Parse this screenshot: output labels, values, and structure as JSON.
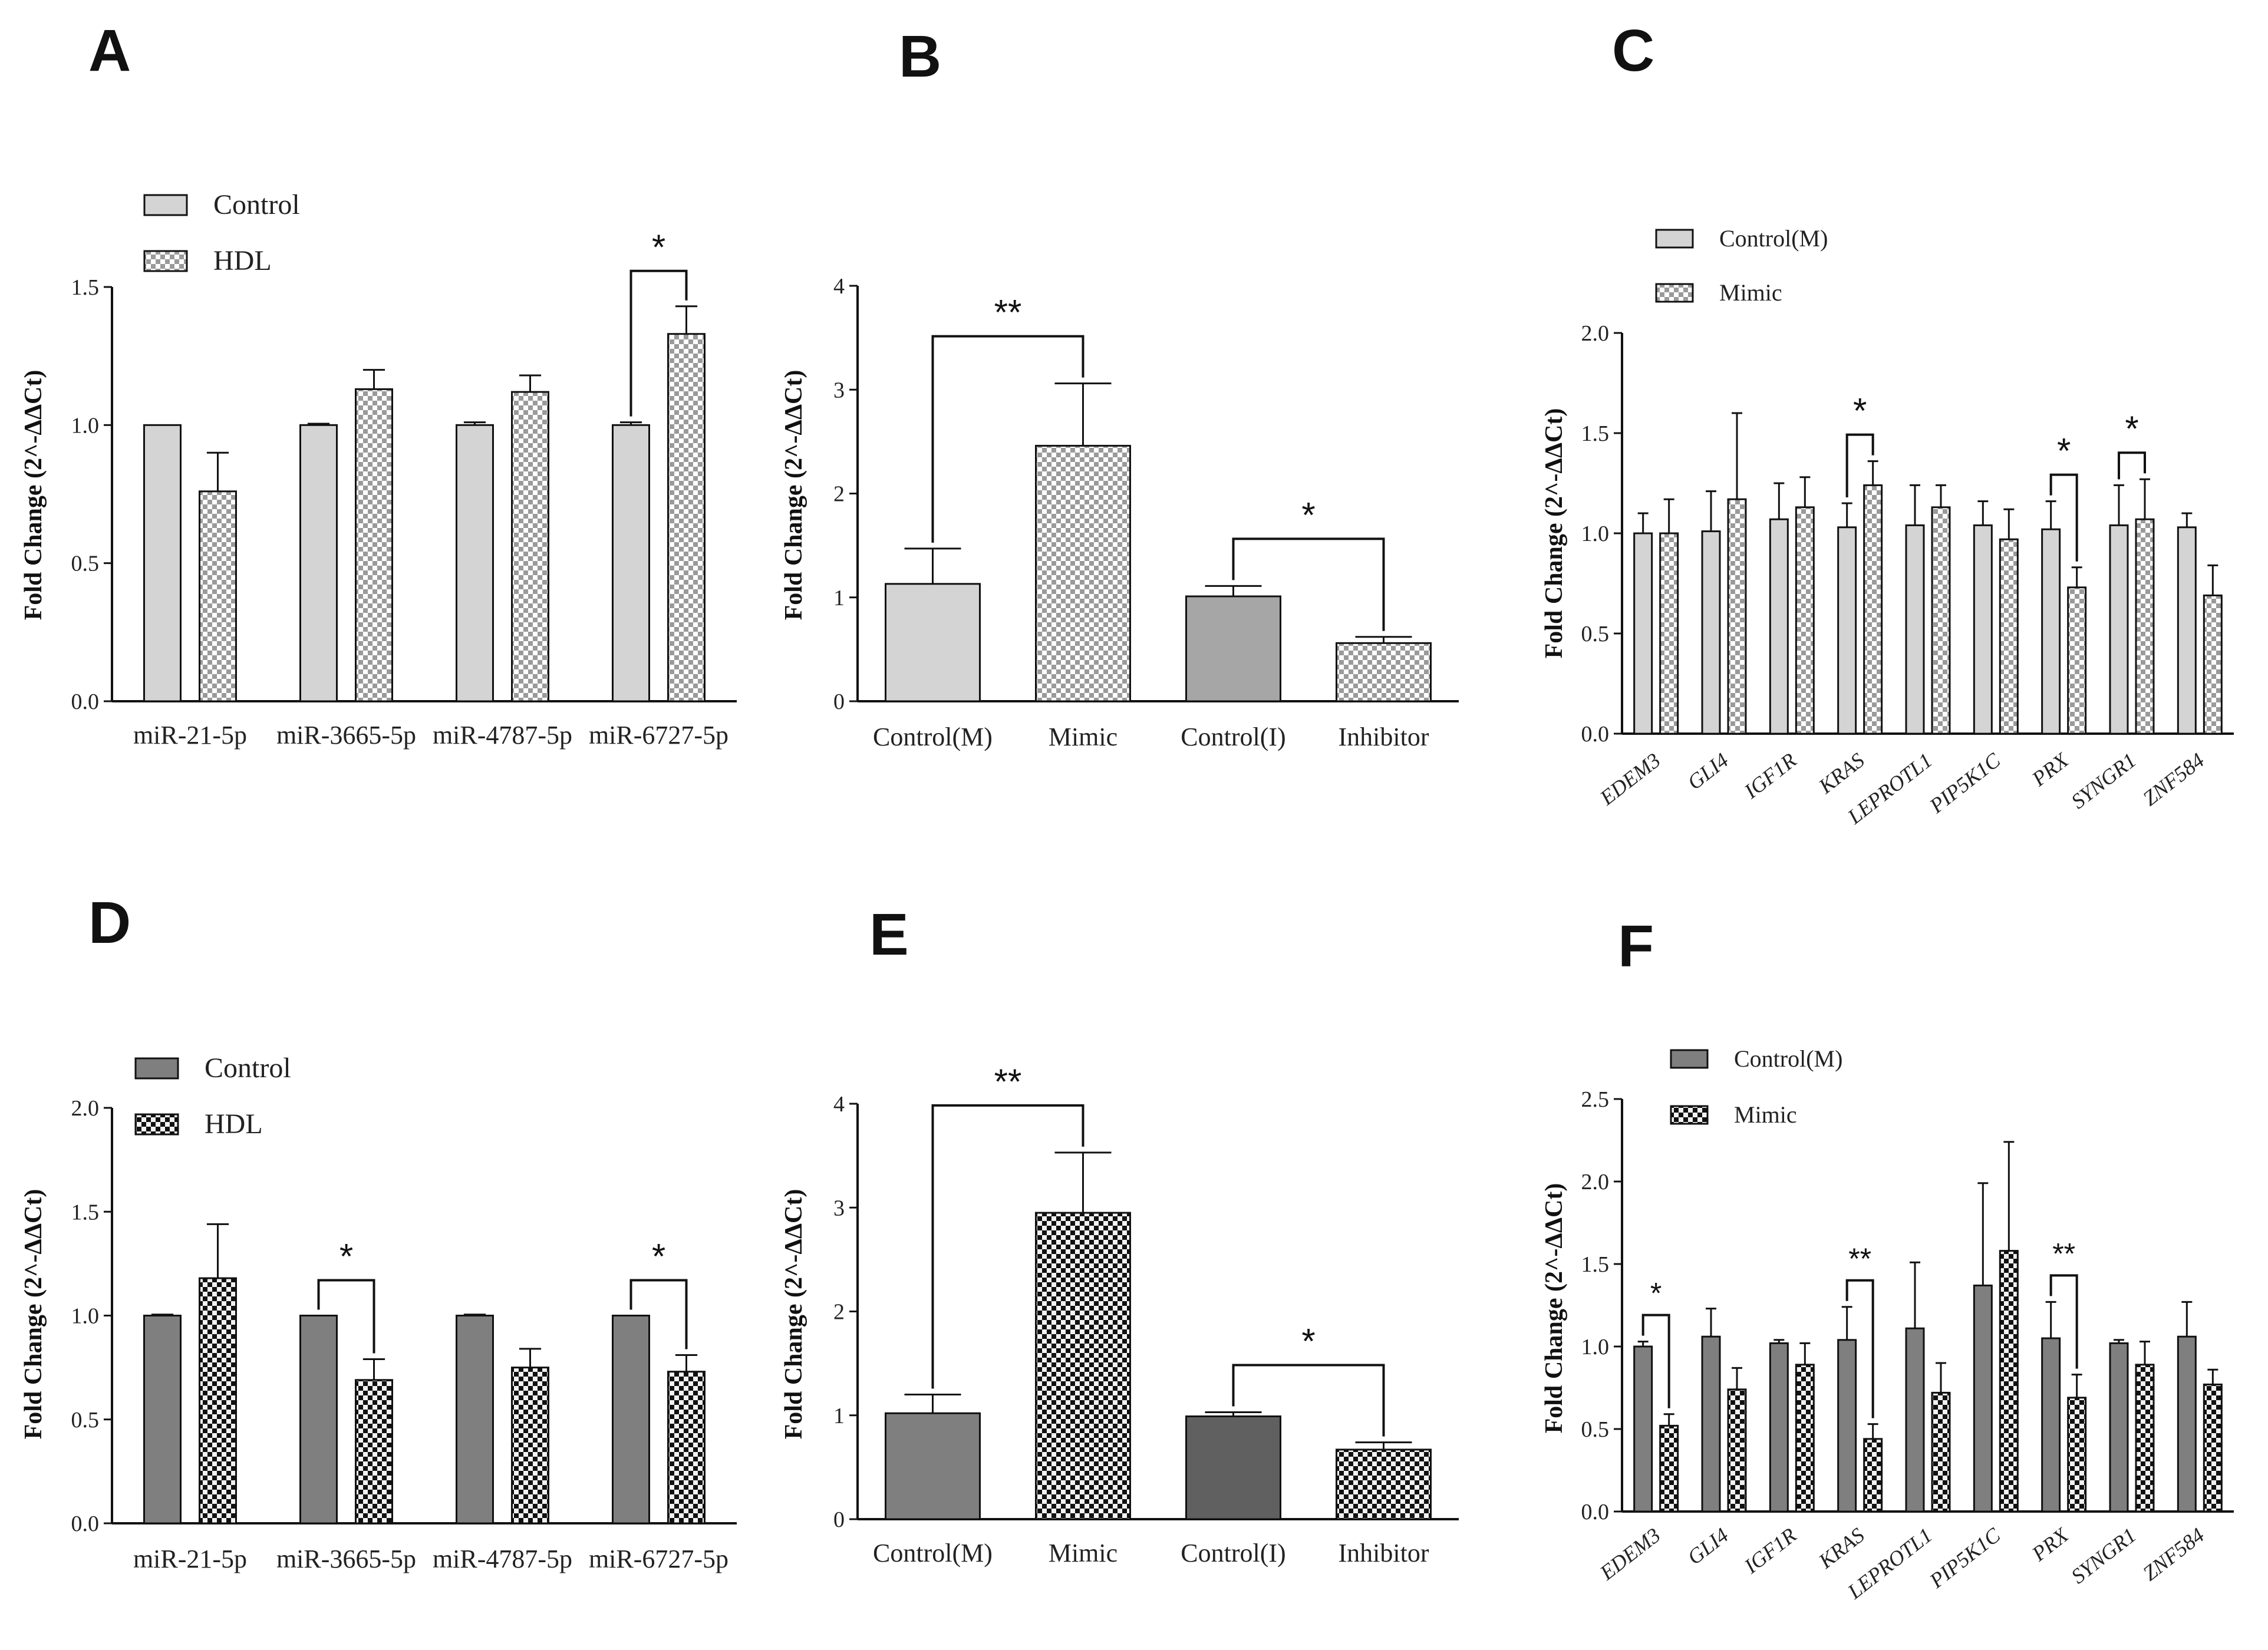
{
  "panels": {
    "A": "A",
    "B": "B",
    "C": "C",
    "D": "D",
    "E": "E",
    "F": "F"
  },
  "colors": {
    "light_gray": "#d4d4d4",
    "mid_gray": "#a6a6a6",
    "dark_gray": "#7f7f7f",
    "darker_gray": "#606060",
    "black": "#111111"
  },
  "chart_data": [
    {
      "panel": "A",
      "type": "bar",
      "ylabel": "Fold Change (2^-ΔΔCt)",
      "ylim": [
        0,
        1.5
      ],
      "yticks": [
        "0.0",
        "0.5",
        "1.0",
        "1.5"
      ],
      "categories": [
        "miR-21-5p",
        "miR-3665-5p",
        "miR-4787-5p",
        "miR-6727-5p"
      ],
      "series": [
        {
          "name": "Control",
          "values": [
            1.0,
            1.0,
            1.0,
            1.0
          ],
          "errors": [
            0,
            0.005,
            0.01,
            0.01
          ]
        },
        {
          "name": "HDL",
          "values": [
            0.76,
            1.13,
            1.12,
            1.33
          ],
          "errors": [
            0.14,
            0.07,
            0.06,
            0.1
          ]
        }
      ],
      "significance": [
        {
          "category": "miR-6727-5p",
          "label": "*"
        }
      ]
    },
    {
      "panel": "B",
      "type": "bar",
      "ylabel": "Fold Change (2^-ΔΔCt)",
      "ylim": [
        0,
        4
      ],
      "yticks": [
        "0",
        "1",
        "2",
        "3",
        "4"
      ],
      "categories": [
        "Control(M)",
        "Mimic",
        "Control(I)",
        "Inhibitor"
      ],
      "values": [
        1.13,
        2.46,
        1.01,
        0.56
      ],
      "errors": [
        0.34,
        0.6,
        0.1,
        0.06
      ],
      "significance": [
        {
          "between": [
            "Control(M)",
            "Mimic"
          ],
          "label": "**"
        },
        {
          "between": [
            "Control(I)",
            "Inhibitor"
          ],
          "label": "*"
        }
      ]
    },
    {
      "panel": "C",
      "type": "bar",
      "ylabel": "Fold Change (2^-ΔΔCt)",
      "ylim": [
        0,
        2.0
      ],
      "yticks": [
        "0.0",
        "0.5",
        "1.0",
        "1.5",
        "2.0"
      ],
      "categories": [
        "EDEM3",
        "GLI4",
        "IGF1R",
        "KRAS",
        "LEPROTL1",
        "PIP5K1C",
        "PRX",
        "SYNGR1",
        "ZNF584"
      ],
      "series": [
        {
          "name": "Control(M)",
          "values": [
            1.0,
            1.01,
            1.07,
            1.03,
            1.04,
            1.04,
            1.02,
            1.04,
            1.03
          ],
          "errors": [
            0.1,
            0.2,
            0.18,
            0.12,
            0.2,
            0.12,
            0.14,
            0.2,
            0.07
          ]
        },
        {
          "name": "Mimic",
          "values": [
            1.0,
            1.17,
            1.13,
            1.24,
            1.13,
            0.97,
            0.73,
            1.07,
            0.69
          ],
          "errors": [
            0.17,
            0.43,
            0.15,
            0.12,
            0.11,
            0.15,
            0.1,
            0.2,
            0.15
          ]
        }
      ],
      "significance": [
        {
          "category": "KRAS",
          "label": "*"
        },
        {
          "category": "PRX",
          "label": "*"
        },
        {
          "category": "SYNGR1",
          "label": "*"
        }
      ]
    },
    {
      "panel": "D",
      "type": "bar",
      "ylabel": "Fold Change (2^-ΔΔCt)",
      "ylim": [
        0,
        2.0
      ],
      "yticks": [
        "0.0",
        "0.5",
        "1.0",
        "1.5",
        "2.0"
      ],
      "categories": [
        "miR-21-5p",
        "miR-3665-5p",
        "miR-4787-5p",
        "miR-6727-5p"
      ],
      "series": [
        {
          "name": "Control",
          "values": [
            1.0,
            1.0,
            1.0,
            1.0
          ],
          "errors": [
            0.005,
            0,
            0.005,
            0
          ]
        },
        {
          "name": "HDL",
          "values": [
            1.18,
            0.69,
            0.75,
            0.73
          ],
          "errors": [
            0.26,
            0.1,
            0.09,
            0.08
          ]
        }
      ],
      "significance": [
        {
          "category": "miR-3665-5p",
          "label": "*"
        },
        {
          "category": "miR-6727-5p",
          "label": "*"
        }
      ]
    },
    {
      "panel": "E",
      "type": "bar",
      "ylabel": "Fold Change (2^-ΔΔCt)",
      "ylim": [
        0,
        4
      ],
      "yticks": [
        "0",
        "1",
        "2",
        "3",
        "4"
      ],
      "categories": [
        "Control(M)",
        "Mimic",
        "Control(I)",
        "Inhibitor"
      ],
      "values": [
        1.02,
        2.95,
        0.99,
        0.67
      ],
      "errors": [
        0.18,
        0.58,
        0.04,
        0.07
      ],
      "significance": [
        {
          "between": [
            "Control(M)",
            "Mimic"
          ],
          "label": "**"
        },
        {
          "between": [
            "Control(I)",
            "Inhibitor"
          ],
          "label": "*"
        }
      ]
    },
    {
      "panel": "F",
      "type": "bar",
      "ylabel": "Fold Change (2^-ΔΔCt)",
      "ylim": [
        0,
        2.5
      ],
      "yticks": [
        "0.0",
        "0.5",
        "1.0",
        "1.5",
        "2.0",
        "2.5"
      ],
      "categories": [
        "EDEM3",
        "GLI4",
        "IGF1R",
        "KRAS",
        "LEPROTL1",
        "PIP5K1C",
        "PRX",
        "SYNGR1",
        "ZNF584"
      ],
      "series": [
        {
          "name": "Control(M)",
          "values": [
            1.0,
            1.06,
            1.02,
            1.04,
            1.11,
            1.37,
            1.05,
            1.02,
            1.06
          ],
          "errors": [
            0.03,
            0.17,
            0.02,
            0.2,
            0.4,
            0.62,
            0.22,
            0.02,
            0.21
          ]
        },
        {
          "name": "Mimic",
          "values": [
            0.52,
            0.74,
            0.89,
            0.44,
            0.72,
            1.58,
            0.69,
            0.89,
            0.77
          ],
          "errors": [
            0.07,
            0.13,
            0.13,
            0.09,
            0.18,
            0.66,
            0.14,
            0.14,
            0.09
          ]
        }
      ],
      "significance": [
        {
          "category": "EDEM3",
          "label": "*"
        },
        {
          "category": "KRAS",
          "label": "**"
        },
        {
          "category": "PRX",
          "label": "**"
        }
      ]
    }
  ]
}
